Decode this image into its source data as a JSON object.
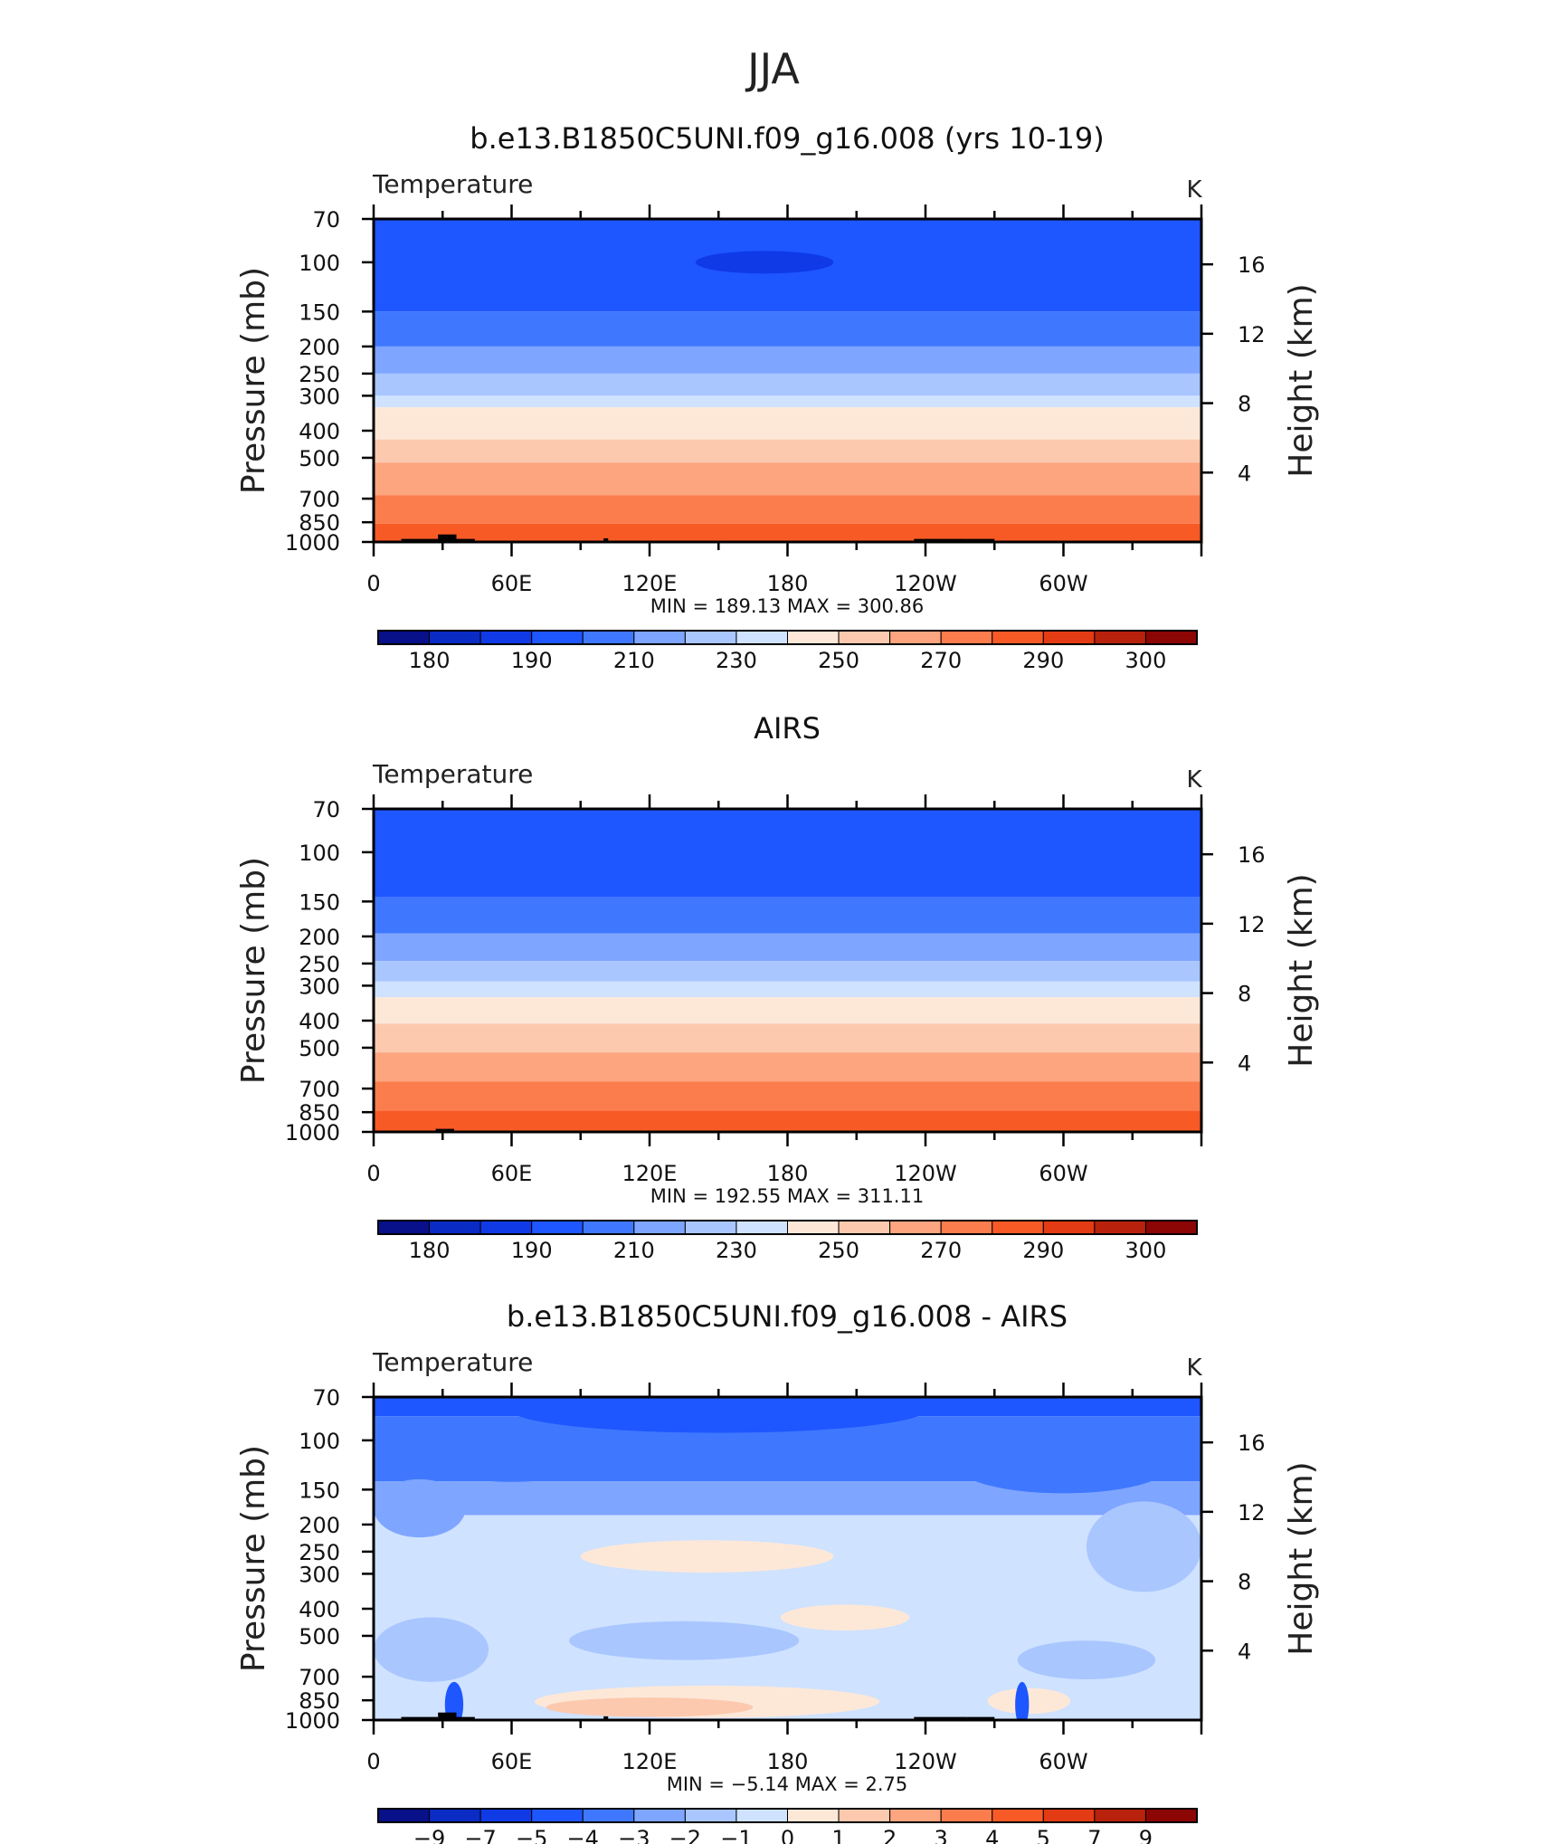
{
  "figure": {
    "season": "JJA"
  },
  "chart_data": [
    {
      "type": "heatmap",
      "title": "b.e13.B1850C5UNI.f09_g16.008 (yrs 10-19)",
      "left_label": "Temperature",
      "units": "K",
      "ylabel": "Pressure (mb)",
      "ylabel_right": "Height (km)",
      "x_ticks": [
        "0",
        "60E",
        "120E",
        "180",
        "120W",
        "60W"
      ],
      "x_tick_values": [
        0,
        60,
        120,
        180,
        240,
        300
      ],
      "xlim": [
        0,
        360
      ],
      "y_ticks": [
        70,
        100,
        150,
        200,
        250,
        300,
        400,
        500,
        700,
        850,
        1000
      ],
      "ylim": [
        1000,
        70
      ],
      "y_scale": "log",
      "height_ticks": [
        4,
        8,
        12,
        16
      ],
      "stats": "MIN = 189.13 MAX = 300.86",
      "colorbar": {
        "labels": [
          "180",
          "190",
          "210",
          "230",
          "250",
          "270",
          "290",
          "300"
        ],
        "colors": [
          "#08108a",
          "#0a2bc4",
          "#0f3ae6",
          "#1e56ff",
          "#3f78ff",
          "#7ea5ff",
          "#a9c6ff",
          "#cfe2ff",
          "#fde8d8",
          "#fcc9ae",
          "#fca57f",
          "#fb7c4c",
          "#f85a26",
          "#e33b14",
          "#b8220c",
          "#8c0606"
        ]
      },
      "bands": [
        {
          "from": 70,
          "to": 150,
          "color": "#1e56ff"
        },
        {
          "from": 150,
          "to": 200,
          "color": "#3f78ff"
        },
        {
          "from": 200,
          "to": 250,
          "color": "#7ea5ff"
        },
        {
          "from": 250,
          "to": 300,
          "color": "#a9c6ff"
        },
        {
          "from": 300,
          "to": 330,
          "color": "#cfe2ff"
        },
        {
          "from": 330,
          "to": 430,
          "color": "#fde8d8"
        },
        {
          "from": 430,
          "to": 520,
          "color": "#fcc9ae"
        },
        {
          "from": 520,
          "to": 680,
          "color": "#fca57f"
        },
        {
          "from": 680,
          "to": 860,
          "color": "#fb7c4c"
        },
        {
          "from": 860,
          "to": 1000,
          "color": "#f85a26"
        }
      ],
      "blobs": [
        {
          "lon": 170,
          "p": 100,
          "rlon": 30,
          "rp": 0.035,
          "color": "#0f3ae6"
        }
      ],
      "terrain": [
        [
          12,
          28
        ],
        [
          28,
          36
        ],
        [
          36,
          44
        ],
        [
          100,
          102
        ],
        [
          235,
          258
        ],
        [
          258,
          270
        ]
      ],
      "terrain_p": [
        975,
        940,
        975,
        970,
        975,
        975
      ]
    },
    {
      "type": "heatmap",
      "title": "AIRS",
      "left_label": "Temperature",
      "units": "K",
      "ylabel": "Pressure (mb)",
      "ylabel_right": "Height (km)",
      "x_ticks": [
        "0",
        "60E",
        "120E",
        "180",
        "120W",
        "60W"
      ],
      "x_tick_values": [
        0,
        60,
        120,
        180,
        240,
        300
      ],
      "xlim": [
        0,
        360
      ],
      "y_ticks": [
        70,
        100,
        150,
        200,
        250,
        300,
        400,
        500,
        700,
        850,
        1000
      ],
      "ylim": [
        1000,
        70
      ],
      "y_scale": "log",
      "height_ticks": [
        4,
        8,
        12,
        16
      ],
      "stats": "MIN = 192.55 MAX = 311.11",
      "colorbar": {
        "labels": [
          "180",
          "190",
          "210",
          "230",
          "250",
          "270",
          "290",
          "300"
        ],
        "colors": [
          "#08108a",
          "#0a2bc4",
          "#0f3ae6",
          "#1e56ff",
          "#3f78ff",
          "#7ea5ff",
          "#a9c6ff",
          "#cfe2ff",
          "#fde8d8",
          "#fcc9ae",
          "#fca57f",
          "#fb7c4c",
          "#f85a26",
          "#e33b14",
          "#b8220c",
          "#8c0606"
        ]
      },
      "bands": [
        {
          "from": 70,
          "to": 145,
          "color": "#1e56ff"
        },
        {
          "from": 145,
          "to": 195,
          "color": "#3f78ff"
        },
        {
          "from": 195,
          "to": 245,
          "color": "#7ea5ff"
        },
        {
          "from": 245,
          "to": 290,
          "color": "#a9c6ff"
        },
        {
          "from": 290,
          "to": 330,
          "color": "#cfe2ff"
        },
        {
          "from": 330,
          "to": 410,
          "color": "#fde8d8"
        },
        {
          "from": 410,
          "to": 520,
          "color": "#fcc9ae"
        },
        {
          "from": 520,
          "to": 660,
          "color": "#fca57f"
        },
        {
          "from": 660,
          "to": 840,
          "color": "#fb7c4c"
        },
        {
          "from": 840,
          "to": 1000,
          "color": "#f85a26"
        }
      ],
      "blobs": [],
      "terrain": [
        [
          27,
          35
        ]
      ],
      "terrain_p": [
        975
      ]
    },
    {
      "type": "heatmap",
      "title": "b.e13.B1850C5UNI.f09_g16.008 - AIRS",
      "left_label": "Temperature",
      "units": "K",
      "ylabel": "Pressure (mb)",
      "ylabel_right": "Height (km)",
      "x_ticks": [
        "0",
        "60E",
        "120E",
        "180",
        "120W",
        "60W"
      ],
      "x_tick_values": [
        0,
        60,
        120,
        180,
        240,
        300
      ],
      "xlim": [
        0,
        360
      ],
      "y_ticks": [
        70,
        100,
        150,
        200,
        250,
        300,
        400,
        500,
        700,
        850,
        1000
      ],
      "ylim": [
        1000,
        70
      ],
      "y_scale": "log",
      "height_ticks": [
        4,
        8,
        12,
        16
      ],
      "stats": "MIN = −5.14 MAX = 2.75",
      "colorbar": {
        "labels": [
          "−9",
          "−7",
          "−5",
          "−4",
          "−3",
          "−2",
          "−1",
          "0",
          "1",
          "2",
          "3",
          "4",
          "5",
          "7",
          "9"
        ],
        "colors": [
          "#08108a",
          "#0a2bc4",
          "#0f3ae6",
          "#1e56ff",
          "#3f78ff",
          "#7ea5ff",
          "#a9c6ff",
          "#cfe2ff",
          "#fde8d8",
          "#fcc9ae",
          "#fca57f",
          "#fb7c4c",
          "#f85a26",
          "#e33b14",
          "#b8220c",
          "#8c0606"
        ]
      },
      "bands": [
        {
          "from": 70,
          "to": 82,
          "color": "#1e56ff"
        },
        {
          "from": 82,
          "to": 140,
          "color": "#3f78ff"
        },
        {
          "from": 140,
          "to": 185,
          "color": "#7ea5ff"
        },
        {
          "from": 185,
          "to": 1000,
          "color": "#cfe2ff"
        }
      ],
      "blobs": [
        {
          "lon": 150,
          "p": 78,
          "rlon": 90,
          "rp": 0.07,
          "color": "#1e56ff"
        },
        {
          "lon": 60,
          "p": 120,
          "rlon": 35,
          "rp": 0.06,
          "color": "#3f78ff"
        },
        {
          "lon": 300,
          "p": 125,
          "rlon": 45,
          "rp": 0.08,
          "color": "#3f78ff"
        },
        {
          "lon": 20,
          "p": 175,
          "rlon": 20,
          "rp": 0.09,
          "color": "#7ea5ff"
        },
        {
          "lon": 335,
          "p": 240,
          "rlon": 25,
          "rp": 0.14,
          "color": "#a9c6ff"
        },
        {
          "lon": 145,
          "p": 260,
          "rlon": 55,
          "rp": 0.05,
          "color": "#fde8d8"
        },
        {
          "lon": 205,
          "p": 430,
          "rlon": 28,
          "rp": 0.04,
          "color": "#fde8d8"
        },
        {
          "lon": 135,
          "p": 520,
          "rlon": 50,
          "rp": 0.06,
          "color": "#a9c6ff"
        },
        {
          "lon": 25,
          "p": 560,
          "rlon": 25,
          "rp": 0.1,
          "color": "#a9c6ff"
        },
        {
          "lon": 310,
          "p": 610,
          "rlon": 30,
          "rp": 0.06,
          "color": "#a9c6ff"
        },
        {
          "lon": 145,
          "p": 860,
          "rlon": 75,
          "rp": 0.05,
          "color": "#fde8d8"
        },
        {
          "lon": 285,
          "p": 855,
          "rlon": 18,
          "rp": 0.04,
          "color": "#fde8d8"
        },
        {
          "lon": 120,
          "p": 900,
          "rlon": 45,
          "rp": 0.03,
          "color": "#fcc9ae"
        },
        {
          "lon": 35,
          "p": 880,
          "rlon": 4,
          "rp": 0.07,
          "color": "#1e56ff"
        },
        {
          "lon": 282,
          "p": 880,
          "rlon": 3,
          "rp": 0.07,
          "color": "#1e56ff"
        }
      ],
      "terrain": [
        [
          12,
          28
        ],
        [
          28,
          36
        ],
        [
          36,
          44
        ],
        [
          100,
          102
        ],
        [
          235,
          258
        ],
        [
          258,
          270
        ]
      ],
      "terrain_p": [
        975,
        940,
        975,
        970,
        975,
        975
      ]
    }
  ]
}
